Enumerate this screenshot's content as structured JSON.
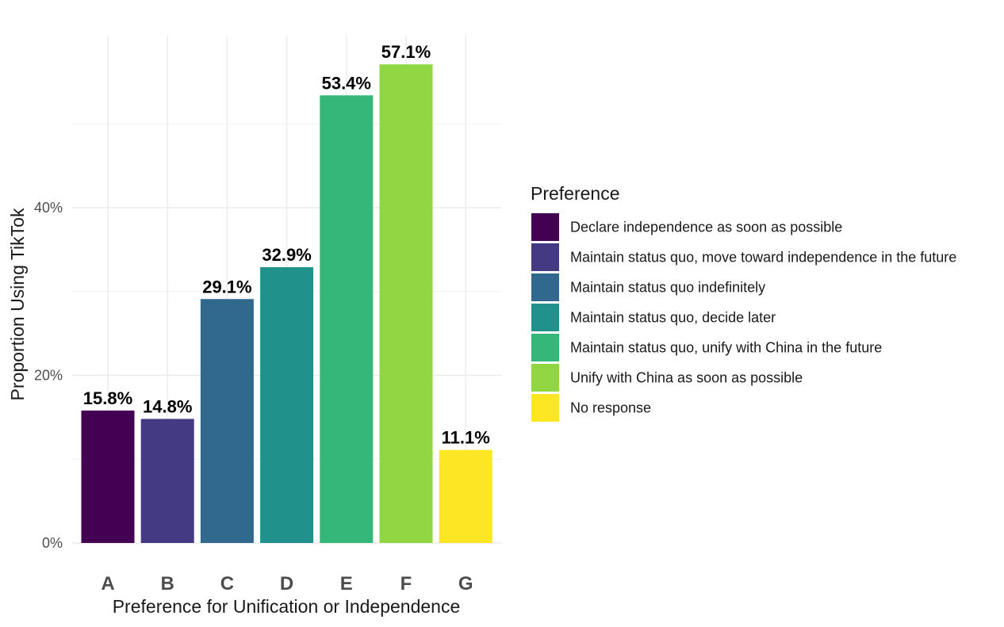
{
  "chart_data": {
    "type": "bar",
    "categories": [
      "A",
      "B",
      "C",
      "D",
      "E",
      "F",
      "G"
    ],
    "values": [
      15.8,
      14.8,
      29.1,
      32.9,
      53.4,
      57.1,
      11.1
    ],
    "data_labels": [
      "15.8%",
      "14.8%",
      "29.1%",
      "32.9%",
      "53.4%",
      "57.1%",
      "11.1%"
    ],
    "colors": [
      "#440154",
      "#443983",
      "#31688e",
      "#21918c",
      "#35b779",
      "#90d743",
      "#fde725"
    ],
    "xlabel": "Preference for Unification or Independence",
    "ylabel": "Proportion Using TikTok",
    "ylim": [
      0,
      60
    ],
    "yticks": [
      0,
      20,
      40
    ],
    "ytick_labels": [
      "0%",
      "20%",
      "40%"
    ],
    "grid": true,
    "legend": {
      "title": "Preference",
      "placement": "right",
      "entries": [
        "Declare independence as soon as possible",
        "Maintain status quo, move toward independence in the future",
        "Maintain status quo indefinitely",
        "Maintain status quo, decide later",
        "Maintain status quo, unify with China in the future",
        "Unify with China as soon as possible",
        "No response"
      ]
    }
  }
}
